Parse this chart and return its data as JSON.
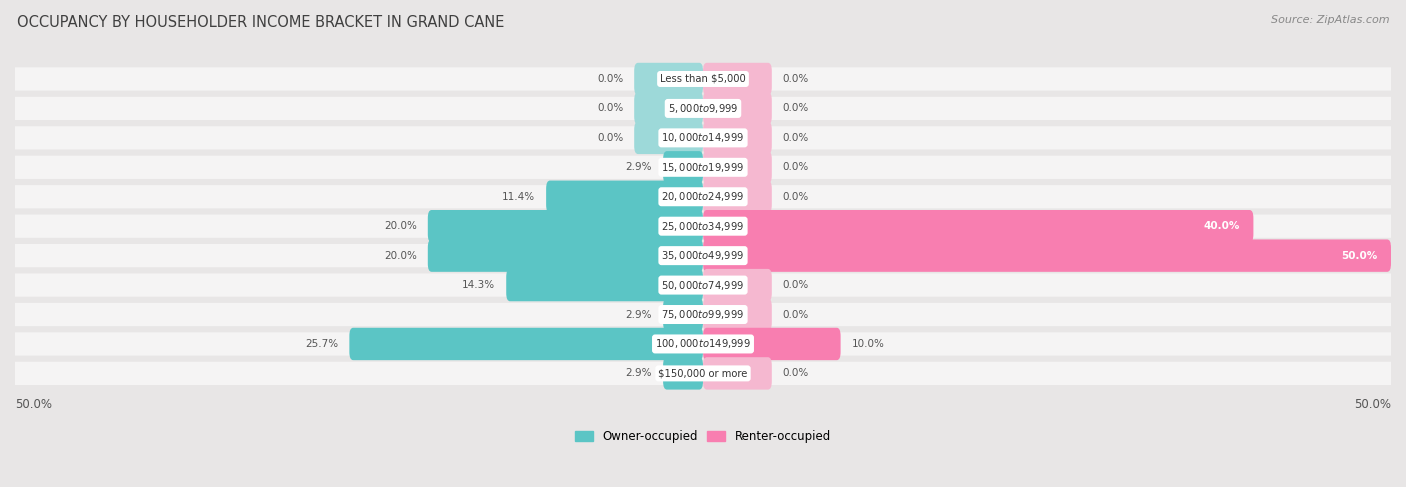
{
  "title": "OCCUPANCY BY HOUSEHOLDER INCOME BRACKET IN GRAND CANE",
  "source": "Source: ZipAtlas.com",
  "categories": [
    "Less than $5,000",
    "$5,000 to $9,999",
    "$10,000 to $14,999",
    "$15,000 to $19,999",
    "$20,000 to $24,999",
    "$25,000 to $34,999",
    "$35,000 to $49,999",
    "$50,000 to $74,999",
    "$75,000 to $99,999",
    "$100,000 to $149,999",
    "$150,000 or more"
  ],
  "owner_occupied": [
    0.0,
    0.0,
    0.0,
    2.9,
    11.4,
    20.0,
    20.0,
    14.3,
    2.9,
    25.7,
    2.9
  ],
  "renter_occupied": [
    0.0,
    0.0,
    0.0,
    0.0,
    0.0,
    40.0,
    50.0,
    0.0,
    0.0,
    10.0,
    0.0
  ],
  "owner_color": "#5bc5c5",
  "owner_color_light": "#9dd9d9",
  "renter_color": "#f87eb0",
  "renter_color_light": "#f5b8d0",
  "bg_color": "#e8e6e6",
  "bar_bg_color": "#f5f4f4",
  "title_color": "#404040",
  "source_color": "#888888",
  "label_color": "#555555",
  "value_label_color": "#555555",
  "xlim": 50.0,
  "bar_height": 0.55,
  "stub_size": 5.0,
  "figsize": [
    14.06,
    4.87
  ],
  "dpi": 100
}
